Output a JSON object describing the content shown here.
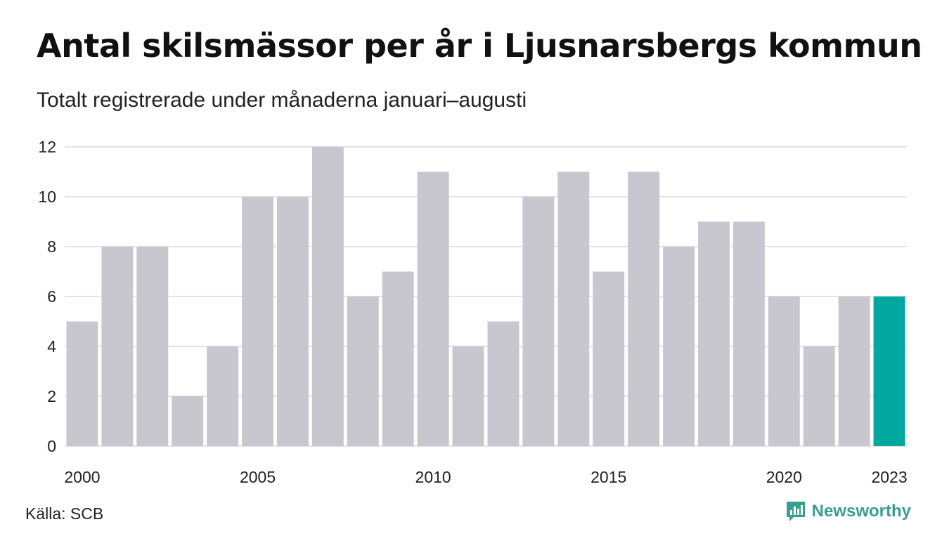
{
  "title": "Antal skilsmässor per år i Ljusnarsbergs kommun",
  "subtitle": "Totalt registrerade under månaderna januari–augusti",
  "source": "Källa: SCB",
  "brand": "Newsworthy",
  "colors": {
    "bar": "#c8c7d0",
    "highlight": "#00a89d",
    "grid": "#e3e3e3",
    "brand": "#3a9e8f"
  },
  "chart_data": {
    "type": "bar",
    "x": [
      2000,
      2001,
      2002,
      2003,
      2004,
      2005,
      2006,
      2007,
      2008,
      2009,
      2010,
      2011,
      2012,
      2013,
      2014,
      2015,
      2016,
      2017,
      2018,
      2019,
      2020,
      2021,
      2022,
      2023
    ],
    "values": [
      5,
      8,
      8,
      2,
      4,
      10,
      10,
      12,
      6,
      7,
      11,
      4,
      5,
      10,
      11,
      7,
      11,
      8,
      9,
      9,
      6,
      4,
      6,
      6
    ],
    "highlight": [
      2023
    ],
    "xticks": [
      "2000",
      "2005",
      "2010",
      "2015",
      "2020",
      "2023"
    ],
    "yticks": [
      0,
      2,
      4,
      6,
      8,
      10,
      12
    ],
    "ylim": [
      0,
      12
    ],
    "grid": true
  }
}
